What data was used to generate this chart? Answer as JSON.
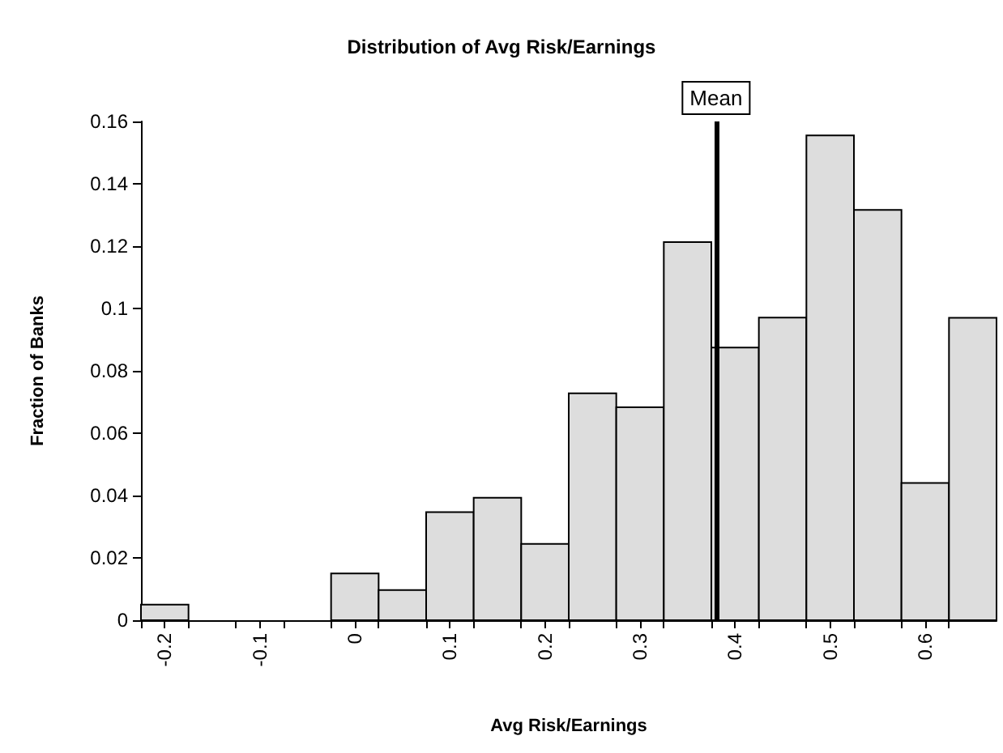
{
  "chart_data": {
    "type": "histogram",
    "title": "Distribution of Avg Risk/Earnings",
    "xlabel": "Avg Risk/Earnings",
    "ylabel": "Fraction of Banks",
    "bins": [
      -0.225,
      -0.175,
      -0.125,
      -0.075,
      -0.025,
      0.025,
      0.075,
      0.125,
      0.175,
      0.225,
      0.275,
      0.325,
      0.375,
      0.425,
      0.475,
      0.525,
      0.575,
      0.625,
      0.675
    ],
    "values": [
      0.005,
      0,
      0,
      0,
      0.015,
      0.0097,
      0.0347,
      0.0393,
      0.0245,
      0.0728,
      0.0683,
      0.1213,
      0.0875,
      0.0971,
      0.1555,
      0.1316,
      0.044,
      0.097
    ],
    "color": "#dddddd",
    "xlim": [
      -0.225,
      0.675
    ],
    "xticks": [
      -0.2,
      -0.1,
      0,
      0.1,
      0.2,
      0.3,
      0.4,
      0.5,
      0.6,
      {
        "value": -0.225,
        "label": null
      },
      {
        "value": -0.175,
        "label": null
      },
      {
        "value": -0.125,
        "label": null
      },
      {
        "value": -0.075,
        "label": null
      },
      {
        "value": -0.025,
        "label": null
      },
      {
        "value": 0.025,
        "label": null
      },
      {
        "value": 0.075,
        "label": null
      },
      {
        "value": 0.125,
        "label": null
      },
      {
        "value": 0.175,
        "label": null
      },
      {
        "value": 0.225,
        "label": null
      },
      {
        "value": 0.275,
        "label": null
      },
      {
        "value": 0.325,
        "label": null
      },
      {
        "value": 0.375,
        "label": null
      },
      {
        "value": 0.425,
        "label": null
      },
      {
        "value": 0.475,
        "label": null
      },
      {
        "value": 0.525,
        "label": null
      },
      {
        "value": 0.575,
        "label": null
      },
      {
        "value": 0.625,
        "label": null
      }
    ],
    "ylim": [
      0,
      0.16
    ],
    "yticks": [
      0,
      0.02,
      0.04,
      0.06,
      0.08,
      0.1,
      0.12,
      0.14,
      0.16
    ],
    "ref_lines": [
      {
        "axis": "x",
        "value": 0.382,
        "label": "Mean",
        "color": "#000000"
      }
    ],
    "grid": false
  }
}
